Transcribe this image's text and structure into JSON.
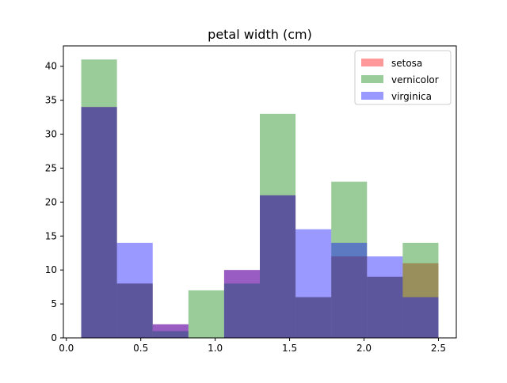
{
  "chart_data": {
    "type": "bar",
    "title": "petal width (cm)",
    "xlabel": "",
    "ylabel": "",
    "xlim": [
      -0.02,
      2.62
    ],
    "ylim": [
      0,
      43
    ],
    "xticks": [
      0.0,
      0.5,
      1.0,
      1.5,
      2.0,
      2.5
    ],
    "xtick_labels": [
      "0.0",
      "0.5",
      "1.0",
      "1.5",
      "2.0",
      "2.5"
    ],
    "yticks": [
      0,
      5,
      10,
      15,
      20,
      25,
      30,
      35,
      40
    ],
    "ytick_labels": [
      "0",
      "5",
      "10",
      "15",
      "20",
      "25",
      "30",
      "35",
      "40"
    ],
    "grid": false,
    "legend_position": "top-right",
    "bar_alpha": 0.4,
    "series": [
      {
        "name": "setosa",
        "color": "#ff0000",
        "bin_edges": [
          0.1,
          0.34,
          0.58,
          0.82,
          1.06,
          1.3,
          1.54,
          1.78,
          2.02,
          2.26,
          2.5
        ],
        "values": [
          34,
          8,
          2,
          0,
          10,
          21,
          6,
          12,
          9,
          11
        ]
      },
      {
        "name": "vernicolor",
        "color": "#008000",
        "bin_edges": [
          0.1,
          0.34,
          0.58,
          0.82,
          1.06,
          1.3,
          1.54,
          1.78,
          2.02,
          2.26,
          2.5
        ],
        "values": [
          41,
          8,
          1,
          7,
          8,
          33,
          6,
          23,
          9,
          14
        ]
      },
      {
        "name": "virginica",
        "color": "#0000ff",
        "bin_edges": [
          0.1,
          0.34,
          0.58,
          0.82,
          1.06,
          1.3,
          1.54,
          1.78,
          2.02,
          2.26,
          2.5
        ],
        "values": [
          34,
          14,
          2,
          0,
          10,
          21,
          16,
          14,
          12,
          6
        ]
      }
    ]
  }
}
